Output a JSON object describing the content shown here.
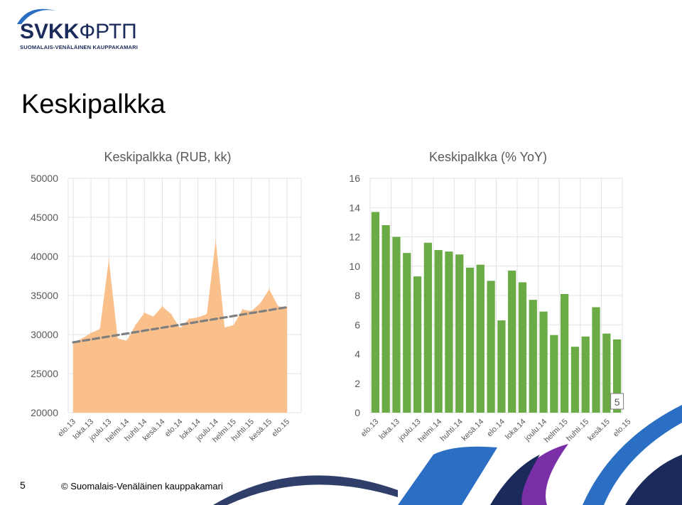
{
  "logo": {
    "brand_bold": "SVKK",
    "brand_light": "ФРТП",
    "subtitle": "SUOMALAIS-VENÄLÄINEN KAUPPAKAMARI"
  },
  "page": {
    "title": "Keskipalkka"
  },
  "footer": {
    "page_number": "5",
    "copyright": "© Suomalais-Venäläinen kauppakamari"
  },
  "colors": {
    "area_fill": "#f9c08c",
    "trend_line": "#7f7f7f",
    "bar_fill": "#6aab46",
    "grid": "#e3e3e3",
    "axis_text": "#595959",
    "wave_blue": "#2a6fc4",
    "wave_purple": "#7a2fa8",
    "wave_navy": "#1a2a5a"
  },
  "chart_data": [
    {
      "type": "area",
      "title": "Keskipalkka (RUB, kk)",
      "ylim": [
        20000,
        50000
      ],
      "yticks": [
        "20000",
        "25000",
        "30000",
        "35000",
        "40000",
        "45000",
        "50000"
      ],
      "xtick_labels": [
        "elo.13",
        "loka.13",
        "joulu.13",
        "helmi.14",
        "huhti.14",
        "kesä.14",
        "elo.14",
        "loka.14",
        "joulu.14",
        "helmi.15",
        "huhti.15",
        "kesä.15",
        "elo.15"
      ],
      "x": [
        "elo.13",
        "syys.13",
        "loka.13",
        "marras.13",
        "joulu.13",
        "tammi.14",
        "helmi.14",
        "maalis.14",
        "huhti.14",
        "touko.14",
        "kesä.14",
        "heinä.14",
        "elo.14",
        "syys.14",
        "loka.14",
        "marras.14",
        "joulu.14",
        "tammi.15",
        "helmi.15",
        "maalis.15",
        "huhti.15",
        "touko.15",
        "kesä.15",
        "heinä.15",
        "elo.15"
      ],
      "values": [
        29000,
        29500,
        30200,
        30700,
        39600,
        29500,
        29200,
        31200,
        32800,
        32300,
        33600,
        32600,
        30800,
        32000,
        32200,
        32600,
        42100,
        30900,
        31200,
        33200,
        33000,
        34000,
        35800,
        33600,
        33500
      ],
      "trend": [
        29000,
        33500
      ],
      "grid": true,
      "legend": "none"
    },
    {
      "type": "bar",
      "title": "Keskipalkka (% YoY)",
      "ylim": [
        0,
        16
      ],
      "yticks": [
        "0",
        "2",
        "4",
        "6",
        "8",
        "10",
        "12",
        "14",
        "16"
      ],
      "xtick_labels": [
        "elo.13",
        "loka.13",
        "joulu.13",
        "helmi.14",
        "huhti.14",
        "kesä.14",
        "elo.14",
        "loka.14",
        "joulu.14",
        "helmi.15",
        "huhti.15",
        "kesä.15",
        "elo.15"
      ],
      "values": [
        13.7,
        12.8,
        12.0,
        10.9,
        9.3,
        11.6,
        11.1,
        11.0,
        10.8,
        9.9,
        10.1,
        9.0,
        6.3,
        9.7,
        8.9,
        7.7,
        6.9,
        5.3,
        8.1,
        4.5,
        5.2,
        7.2,
        5.4,
        5.0
      ],
      "data_label": "5",
      "grid": true,
      "legend": "none"
    }
  ]
}
